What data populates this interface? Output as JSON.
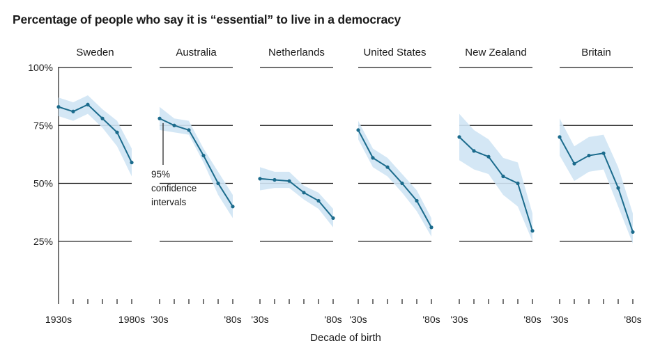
{
  "title": "Percentage of people who say it is “essential” to live in a democracy",
  "chart_data": {
    "type": "line",
    "title": "Percentage of people who say it is “essential” to live in a democracy",
    "xlabel": "Decade of birth",
    "ylabel": "",
    "ylim": [
      0,
      100
    ],
    "y_ticks": [
      "100%",
      "75%",
      "50%",
      "25%"
    ],
    "y_tick_values": [
      100,
      75,
      50,
      25
    ],
    "grid": true,
    "colors": {
      "line": "#1b6b8c",
      "band": "#cfe4f4",
      "grid": "#1a1a1a"
    },
    "annotation": {
      "panel": "Australia",
      "lines": [
        "95%",
        "confidence",
        "intervals"
      ]
    },
    "panels": [
      {
        "name": "Sweden",
        "x_tick_labels": [
          "1930s",
          "1980s"
        ],
        "x": [
          "1930s",
          "1940s",
          "1950s",
          "1960s",
          "1970s",
          "1980s"
        ],
        "values": [
          83,
          81,
          84,
          78,
          72,
          59
        ],
        "lower": [
          79,
          77,
          80,
          74,
          66,
          53
        ],
        "upper": [
          87,
          85,
          88,
          82,
          77,
          65
        ]
      },
      {
        "name": "Australia",
        "x_tick_labels": [
          "'30s",
          "'80s"
        ],
        "x": [
          "1930s",
          "1940s",
          "1950s",
          "1960s",
          "1970s",
          "1980s"
        ],
        "values": [
          78,
          75,
          73,
          62,
          50,
          40
        ],
        "lower": [
          73,
          72,
          71,
          59,
          45,
          35
        ],
        "upper": [
          83,
          78,
          77,
          65,
          55,
          45
        ]
      },
      {
        "name": "Netherlands",
        "x_tick_labels": [
          "'30s",
          "'80s"
        ],
        "x": [
          "1930s",
          "1940s",
          "1950s",
          "1960s",
          "1970s",
          "1980s"
        ],
        "values": [
          52,
          51.5,
          51,
          46,
          42.5,
          35
        ],
        "lower": [
          47,
          48,
          48,
          43,
          39,
          31
        ],
        "upper": [
          57,
          55,
          55,
          49,
          46,
          39
        ]
      },
      {
        "name": "United States",
        "x_tick_labels": [
          "'30s",
          "'80s"
        ],
        "x": [
          "1930s",
          "1940s",
          "1950s",
          "1960s",
          "1970s",
          "1980s"
        ],
        "values": [
          73,
          61,
          57,
          50,
          42.5,
          31
        ],
        "lower": [
          69,
          57,
          53,
          46,
          38,
          27
        ],
        "upper": [
          77,
          65,
          61,
          54,
          47,
          35
        ]
      },
      {
        "name": "New Zealand",
        "x_tick_labels": [
          "'30s",
          "'80s"
        ],
        "x": [
          "1930s",
          "1940s",
          "1950s",
          "1960s",
          "1970s",
          "1980s"
        ],
        "values": [
          70,
          64,
          61.5,
          53,
          50,
          29.5
        ],
        "lower": [
          60,
          56,
          54,
          45,
          40,
          25
        ],
        "upper": [
          80,
          73,
          69,
          61,
          59,
          37
        ]
      },
      {
        "name": "Britain",
        "x_tick_labels": [
          "'30s",
          "'80s"
        ],
        "x": [
          "1930s",
          "1940s",
          "1950s",
          "1960s",
          "1970s",
          "1980s"
        ],
        "values": [
          70,
          58.5,
          62,
          63,
          48,
          29
        ],
        "lower": [
          62,
          51,
          55,
          56,
          40,
          24
        ],
        "upper": [
          78,
          66,
          70,
          71,
          57,
          37
        ]
      }
    ]
  }
}
